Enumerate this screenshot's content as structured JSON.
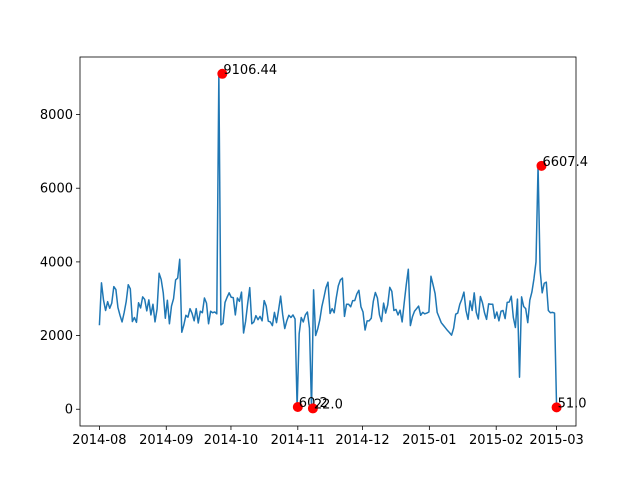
{
  "chart_data": {
    "type": "line",
    "title": "",
    "xlabel": "",
    "ylabel": "",
    "x_start": "2014-08-01",
    "x_end": "2015-03-01",
    "xlim": [
      "2014-07-23",
      "2015-03-10"
    ],
    "ylim": [
      -455,
      9562
    ],
    "grid": false,
    "legend": "none",
    "x_ticks": [
      {
        "date": "2014-08-01",
        "label": "2014-08"
      },
      {
        "date": "2014-09-01",
        "label": "2014-09"
      },
      {
        "date": "2014-10-01",
        "label": "2014-10"
      },
      {
        "date": "2014-11-01",
        "label": "2014-11"
      },
      {
        "date": "2014-12-01",
        "label": "2014-12"
      },
      {
        "date": "2015-01-01",
        "label": "2015-01"
      },
      {
        "date": "2015-02-01",
        "label": "2015-02"
      },
      {
        "date": "2015-03-01",
        "label": "2015-03"
      }
    ],
    "y_ticks": [
      {
        "value": 0,
        "label": "0"
      },
      {
        "value": 2000,
        "label": "2000"
      },
      {
        "value": 4000,
        "label": "4000"
      },
      {
        "value": 6000,
        "label": "6000"
      },
      {
        "value": 8000,
        "label": "8000"
      }
    ],
    "series": [
      {
        "color": "#1f77b4",
        "values": [
          2280,
          3430,
          2960,
          2680,
          2920,
          2740,
          2880,
          3330,
          3250,
          2760,
          2550,
          2370,
          2620,
          2920,
          3380,
          3270,
          2380,
          2490,
          2360,
          2890,
          2750,
          3050,
          2980,
          2670,
          2970,
          2560,
          2850,
          2370,
          2720,
          3690,
          3520,
          3160,
          2470,
          2960,
          2320,
          2800,
          3000,
          3510,
          3560,
          4070,
          2090,
          2290,
          2550,
          2500,
          2730,
          2600,
          2400,
          2730,
          2340,
          2660,
          2620,
          3020,
          2880,
          2320,
          2660,
          2620,
          2640,
          2590,
          9106.44,
          2290,
          2330,
          2900,
          3040,
          3160,
          3040,
          3030,
          2560,
          3020,
          2930,
          3180,
          2070,
          2390,
          2870,
          3300,
          2320,
          2370,
          2540,
          2430,
          2520,
          2400,
          2950,
          2800,
          2390,
          2370,
          2270,
          2630,
          2350,
          2690,
          3070,
          2570,
          2190,
          2400,
          2550,
          2490,
          2560,
          2450,
          60.2,
          2050,
          2490,
          2370,
          2560,
          2640,
          2200,
          22.0,
          3240,
          2000,
          2180,
          2420,
          2780,
          3030,
          3300,
          3450,
          2600,
          2730,
          2620,
          3020,
          3350,
          3510,
          3560,
          2520,
          2850,
          2850,
          2780,
          2950,
          2950,
          3130,
          3230,
          2780,
          2640,
          2150,
          2400,
          2400,
          2470,
          2930,
          3170,
          3020,
          2560,
          2380,
          2880,
          2610,
          2830,
          3310,
          3200,
          2680,
          2710,
          2560,
          2690,
          2370,
          2890,
          3380,
          3800,
          2270,
          2510,
          2660,
          2730,
          2800,
          2550,
          2630,
          2590,
          2610,
          2640,
          3610,
          3380,
          3140,
          2630,
          2490,
          2350,
          2280,
          2210,
          2140,
          2080,
          2010,
          2200,
          2580,
          2610,
          2850,
          2990,
          3180,
          2680,
          2440,
          2940,
          2680,
          3160,
          2630,
          2450,
          3060,
          2890,
          2620,
          2440,
          2860,
          2850,
          2850,
          2470,
          2640,
          2400,
          2660,
          2680,
          2460,
          2900,
          2910,
          3070,
          2490,
          2220,
          2990,
          870,
          3050,
          2790,
          2730,
          2350,
          2960,
          3180,
          3540,
          4000,
          6607.4,
          3770,
          3160,
          3420,
          3450,
          2680,
          2620,
          2630,
          2610,
          51.0
        ]
      }
    ],
    "annotations": [
      {
        "date": "2014-09-27",
        "value": 9106.44,
        "label": "9106.44"
      },
      {
        "date": "2014-11-01",
        "value": 60.2,
        "label": "60.2"
      },
      {
        "date": "2014-11-08",
        "value": 22.0,
        "label": "22.0"
      },
      {
        "date": "2015-02-22",
        "value": 6607.4,
        "label": "6607.4"
      },
      {
        "date": "2015-03-01",
        "value": 51.0,
        "label": "51.0"
      }
    ],
    "marker_color": "#ff0000"
  }
}
